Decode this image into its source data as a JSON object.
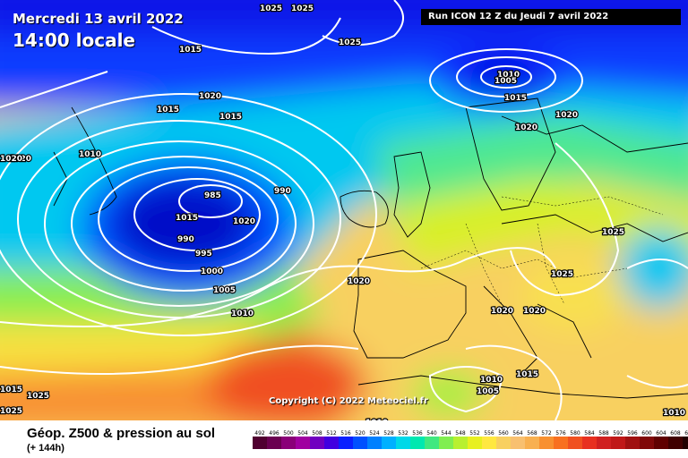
{
  "header": {
    "date": "Mercredi 13 avril 2022",
    "time": "14:00 locale",
    "run": "Run ICON 12 Z du Jeudi 7 avril 2022"
  },
  "copyright": "Copyright (C) 2022 Meteociel.fr",
  "legend": {
    "title": "Géop. Z500 & pression au sol",
    "subtitle": "(+ 144h)",
    "ticks": [
      "492",
      "496",
      "500",
      "504",
      "508",
      "512",
      "516",
      "520",
      "524",
      "528",
      "532",
      "536",
      "540",
      "544",
      "548",
      "552",
      "556",
      "560",
      "564",
      "568",
      "572",
      "576",
      "580",
      "584",
      "588",
      "592",
      "596",
      "600",
      "604",
      "608",
      "612"
    ],
    "colors": [
      "#500030",
      "#6a0050",
      "#8a0078",
      "#a000a0",
      "#7000c0",
      "#4000e0",
      "#0a20ff",
      "#0050ff",
      "#0080ff",
      "#00b0ff",
      "#00d8e8",
      "#00e8b0",
      "#40e880",
      "#80ee50",
      "#b8f030",
      "#e8f020",
      "#ffe840",
      "#f8d060",
      "#f8c070",
      "#f8b050",
      "#f89030",
      "#f87020",
      "#f05020",
      "#e83020",
      "#d02020",
      "#c01818",
      "#a01010",
      "#800808",
      "#600000",
      "#400000",
      "#200000"
    ]
  },
  "isobar_labels": [
    {
      "text": "1025"
    },
    {
      "text": "1025"
    },
    {
      "text": "1015"
    },
    {
      "text": "1025"
    },
    {
      "text": "1010"
    },
    {
      "text": "1005"
    },
    {
      "text": "1015"
    },
    {
      "text": "1020"
    },
    {
      "text": "1020"
    },
    {
      "text": "1020"
    },
    {
      "text": "1015"
    },
    {
      "text": "1015"
    },
    {
      "text": "1020"
    },
    {
      "text": "1010"
    },
    {
      "text": "1015"
    },
    {
      "text": "1020"
    },
    {
      "text": "985"
    },
    {
      "text": "990"
    },
    {
      "text": "990"
    },
    {
      "text": "995"
    },
    {
      "text": "1000"
    },
    {
      "text": "1005"
    },
    {
      "text": "1010"
    },
    {
      "text": "1020"
    },
    {
      "text": "1025"
    },
    {
      "text": "1025"
    },
    {
      "text": "1015"
    },
    {
      "text": "1020"
    },
    {
      "text": "1020"
    },
    {
      "text": "1020"
    },
    {
      "text": "1010"
    },
    {
      "text": "1005"
    },
    {
      "text": "1015"
    },
    {
      "text": "1010"
    },
    {
      "text": "1025"
    },
    {
      "text": "1025"
    },
    {
      "text": "1010"
    }
  ]
}
